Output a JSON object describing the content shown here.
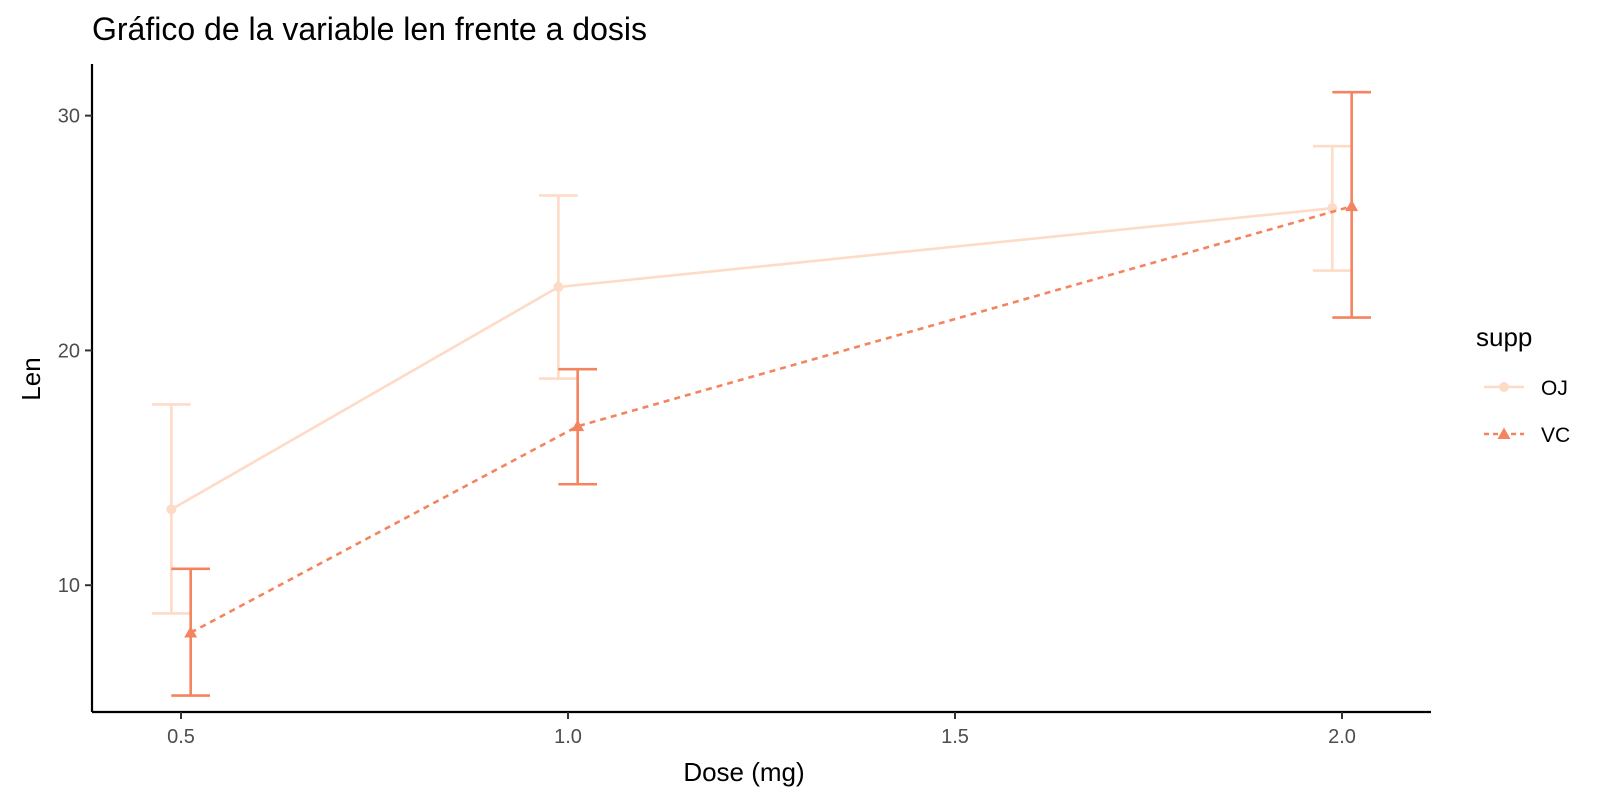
{
  "chart_data": {
    "type": "line",
    "title": "Gráfico de la variable len frente a dosis",
    "xlabel": "Dose (mg)",
    "ylabel": "Len",
    "xlim": [
      0.385,
      2.115
    ],
    "ylim": [
      4.6,
      32.2
    ],
    "xticks": [
      0.5,
      1.0,
      1.5,
      2.0
    ],
    "xtick_labels": [
      "0.5",
      "1.0",
      "1.5",
      "2.0"
    ],
    "yticks": [
      10,
      20,
      30
    ],
    "ytick_labels": [
      "10",
      "20",
      "30"
    ],
    "grid": false,
    "legend": {
      "title": "supp",
      "position": "right"
    },
    "series": [
      {
        "name": "OJ",
        "color": "#FDDBC7",
        "marker": "circle",
        "line_style": "solid",
        "x": [
          0.5,
          1.0,
          2.0
        ],
        "y": [
          13.23,
          22.7,
          26.06
        ],
        "err_low": [
          8.8,
          18.8,
          23.4
        ],
        "err_high": [
          17.7,
          26.6,
          28.7
        ]
      },
      {
        "name": "VC",
        "color": "#F4845F",
        "marker": "triangle",
        "line_style": "dashed",
        "x": [
          0.5,
          1.0,
          2.0
        ],
        "y": [
          7.98,
          16.77,
          26.14
        ],
        "err_low": [
          5.3,
          14.3,
          21.4
        ],
        "err_high": [
          10.7,
          19.2,
          31.0
        ]
      }
    ]
  }
}
